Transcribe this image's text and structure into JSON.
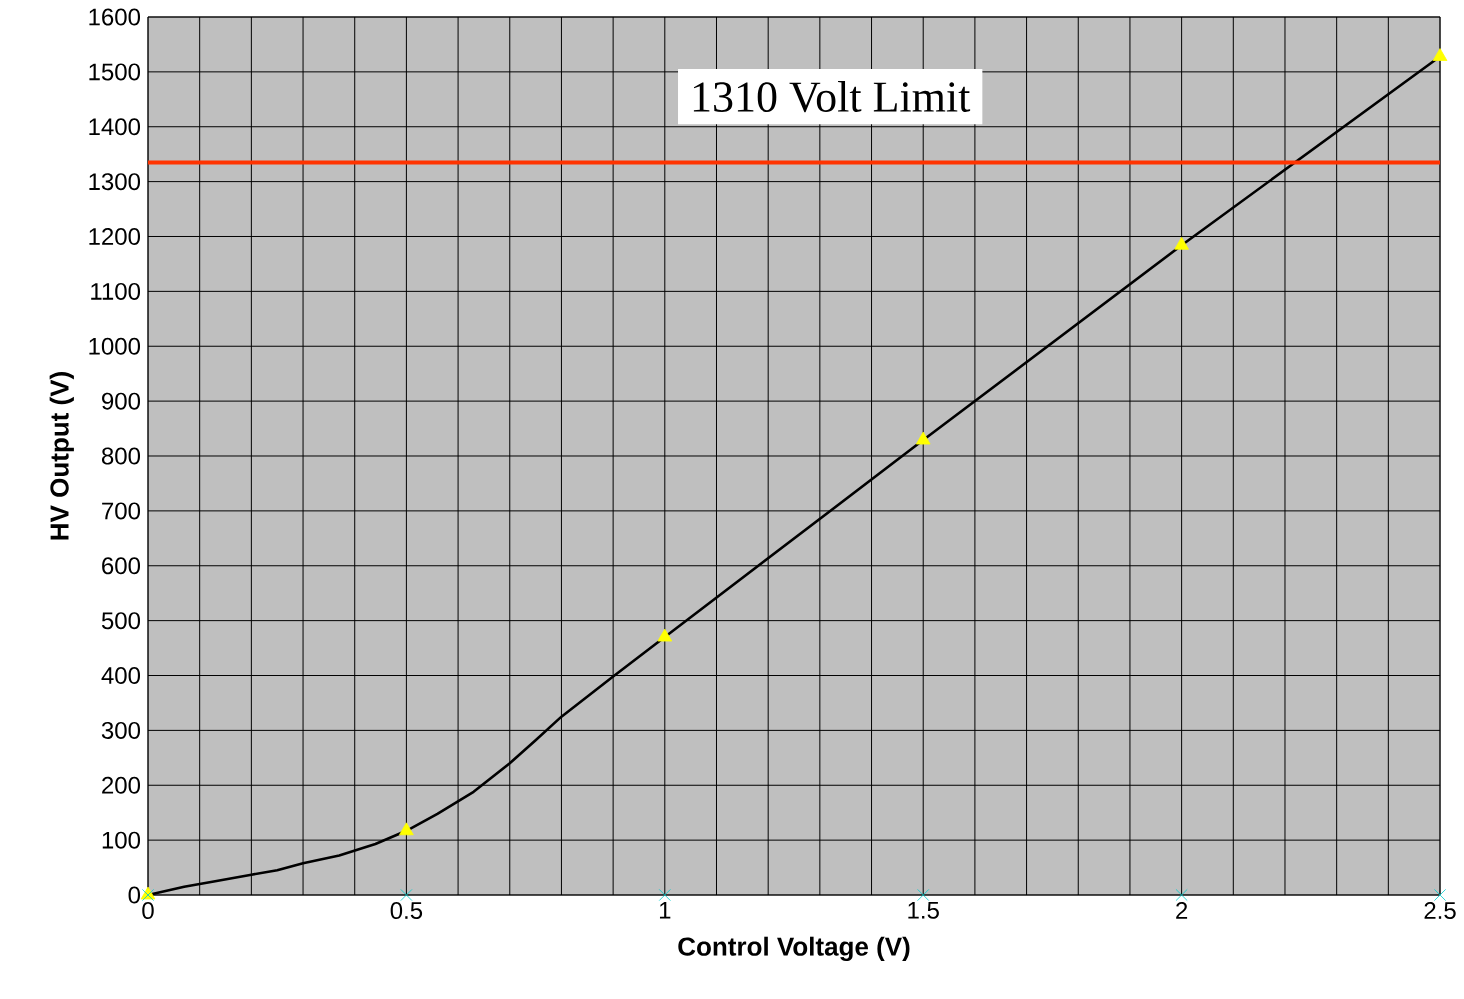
{
  "chart_data": {
    "type": "line",
    "xlabel": "Control Voltage (V)",
    "ylabel": "HV Output (V)",
    "xlim": [
      0,
      2.5
    ],
    "ylim": [
      0,
      1600
    ],
    "xticks": [
      0,
      {
        "value": 0.1,
        "label": null
      },
      {
        "value": 0.2,
        "label": null
      },
      {
        "value": 0.3,
        "label": null
      },
      {
        "value": 0.4,
        "label": null
      },
      0.5,
      {
        "value": 0.6,
        "label": null
      },
      {
        "value": 0.7,
        "label": null
      },
      {
        "value": 0.8,
        "label": null
      },
      {
        "value": 0.9,
        "label": null
      },
      1,
      {
        "value": 1.1,
        "label": null
      },
      {
        "value": 1.2,
        "label": null
      },
      {
        "value": 1.3,
        "label": null
      },
      {
        "value": 1.4,
        "label": null
      },
      1.5,
      {
        "value": 1.6,
        "label": null
      },
      {
        "value": 1.7,
        "label": null
      },
      {
        "value": 1.8,
        "label": null
      },
      {
        "value": 1.9,
        "label": null
      },
      2,
      {
        "value": 2.1,
        "label": null
      },
      {
        "value": 2.2,
        "label": null
      },
      {
        "value": 2.3,
        "label": null
      },
      {
        "value": 2.4,
        "label": null
      },
      2.5
    ],
    "yticks": [
      0,
      100,
      200,
      300,
      400,
      500,
      600,
      700,
      800,
      900,
      1000,
      1100,
      1200,
      1300,
      1400,
      1500,
      1600
    ],
    "grid": true,
    "series": [
      {
        "color": "#000000",
        "marker": "none",
        "x": [
          0,
          0.07,
          0.13,
          0.2,
          0.25,
          0.3,
          0.37,
          0.44,
          0.5,
          0.56,
          0.63,
          0.7,
          0.75,
          0.8,
          0.9,
          1,
          1.5,
          2,
          2.5
        ],
        "values": [
          0,
          15,
          25,
          37,
          45,
          58,
          72,
          93,
          117,
          148,
          188,
          240,
          282,
          325,
          398,
          470,
          829,
          1184,
          1528
        ]
      },
      {
        "type": "scatter",
        "color": "#ffff00",
        "marker": "triangle",
        "x": [
          0,
          0.5,
          1,
          1.5,
          2,
          2.5
        ],
        "values": [
          0,
          117,
          470,
          829,
          1184,
          1528
        ]
      },
      {
        "type": "scatter",
        "color": "#00cccc",
        "marker": "cross",
        "x": [
          0,
          0.5,
          1,
          1.5,
          2,
          2.5
        ],
        "values": [
          0,
          0,
          0,
          0,
          0,
          0
        ]
      }
    ],
    "ref_lines": [
      {
        "axis": "y",
        "value": 1335,
        "label": "1310 Volt Limit",
        "color": "#ff3300"
      }
    ]
  }
}
